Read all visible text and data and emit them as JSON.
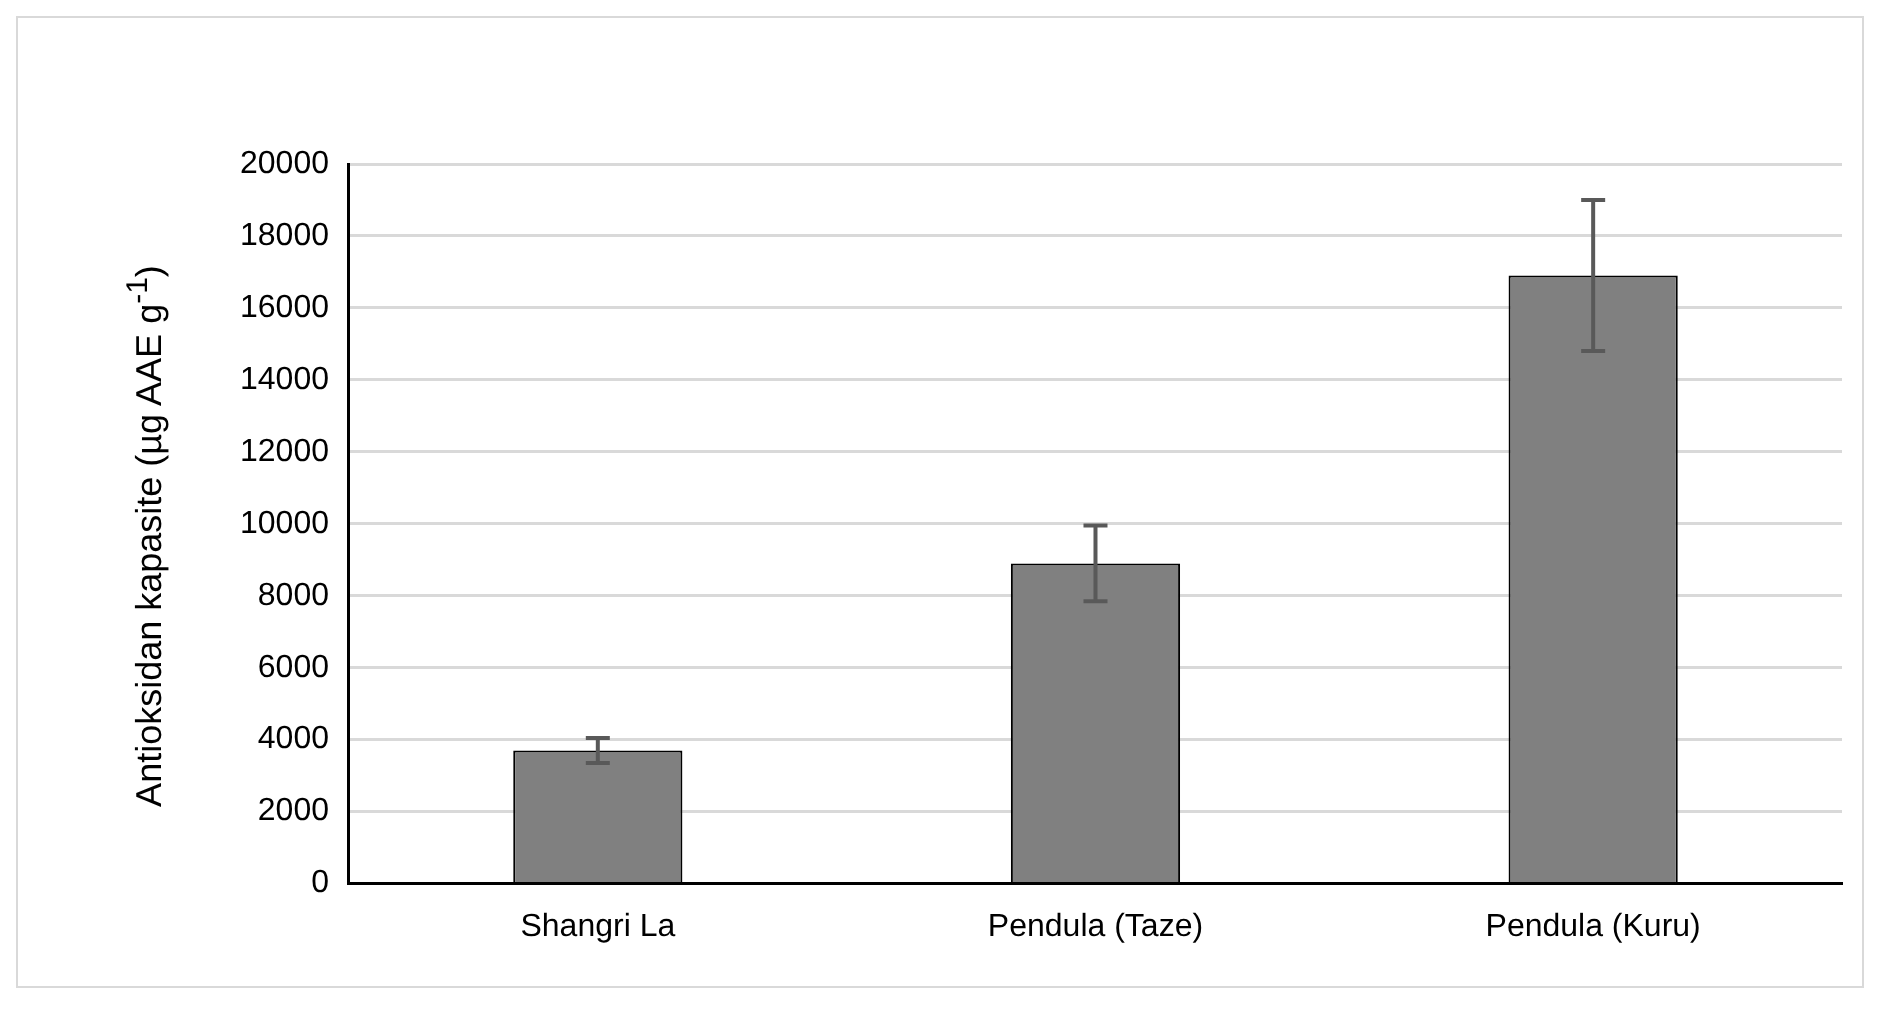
{
  "chart_data": {
    "type": "bar",
    "ylabel": "Antioksidan kapasite (µg AAE g$^{-1}$)",
    "categories": [
      "Shangri La",
      "Pendula (Taze)",
      "Pendula (Kuru)"
    ],
    "values": [
      3700,
      8900,
      16900
    ],
    "errors": [
      350,
      1050,
      2100
    ],
    "color": "#808080",
    "ylim": [
      0,
      20000
    ],
    "yticks": [
      0,
      2000,
      4000,
      6000,
      8000,
      10000,
      12000,
      14000,
      16000,
      18000,
      20000
    ],
    "grid": "y",
    "legend": false
  }
}
